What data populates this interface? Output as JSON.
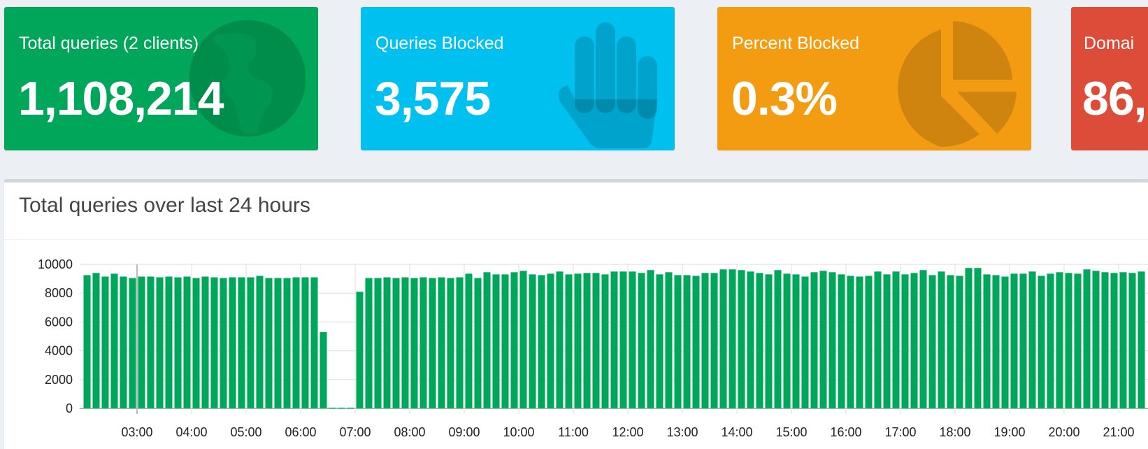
{
  "cards": [
    {
      "label": "Total queries (2 clients)",
      "value": "1,108,214",
      "color": "#00a65a",
      "icon": "globe-icon"
    },
    {
      "label": "Queries Blocked",
      "value": "3,575",
      "color": "#00c0ef",
      "icon": "hand-icon"
    },
    {
      "label": "Percent Blocked",
      "value": "0.3%",
      "color": "#f39c12",
      "icon": "pie-chart-icon"
    },
    {
      "label": "Domai",
      "value": "86,",
      "color": "#dd4b39",
      "icon": ""
    }
  ],
  "panel": {
    "title": "Total queries over last 24 hours"
  },
  "chart_data": {
    "type": "bar",
    "title": "Total queries over last 24 hours",
    "bar_color": "#00a65a",
    "ylim": [
      0,
      10000
    ],
    "yticks": [
      "0",
      "2000",
      "4000",
      "6000",
      "8000",
      "10000"
    ],
    "xtick_labels": [
      "03:00",
      "04:00",
      "05:00",
      "06:00",
      "07:00",
      "08:00",
      "09:00",
      "10:00",
      "11:00",
      "12:00",
      "13:00",
      "14:00",
      "15:00",
      "16:00",
      "17:00",
      "18:00",
      "19:00",
      "20:00",
      "21:00"
    ],
    "bar_interval_minutes": 10,
    "first_bar_time": "02:00",
    "values": [
      9250,
      9400,
      9150,
      9350,
      9150,
      9050,
      9150,
      9150,
      9100,
      9150,
      9100,
      9150,
      9050,
      9150,
      9100,
      9050,
      9100,
      9100,
      9100,
      9200,
      9050,
      9050,
      9050,
      9100,
      9100,
      9100,
      5300,
      50,
      50,
      50,
      8100,
      9050,
      9050,
      9100,
      9050,
      9100,
      9050,
      9100,
      9050,
      9100,
      9050,
      9100,
      9350,
      9050,
      9450,
      9300,
      9300,
      9450,
      9550,
      9300,
      9250,
      9350,
      9500,
      9300,
      9350,
      9400,
      9400,
      9300,
      9500,
      9500,
      9500,
      9400,
      9600,
      9300,
      9450,
      9250,
      9250,
      9200,
      9400,
      9400,
      9650,
      9650,
      9600,
      9500,
      9400,
      9300,
      9600,
      9350,
      9300,
      9150,
      9450,
      9550,
      9450,
      9300,
      9200,
      9150,
      9200,
      9500,
      9300,
      9500,
      9300,
      9400,
      9600,
      9250,
      9500,
      9250,
      9200,
      9750,
      9750,
      9300,
      9250,
      9150,
      9350,
      9350,
      9500,
      9200,
      9350,
      9450,
      9400,
      9350,
      9650,
      9550,
      9450,
      9400,
      9450,
      9400,
      9500
    ]
  }
}
